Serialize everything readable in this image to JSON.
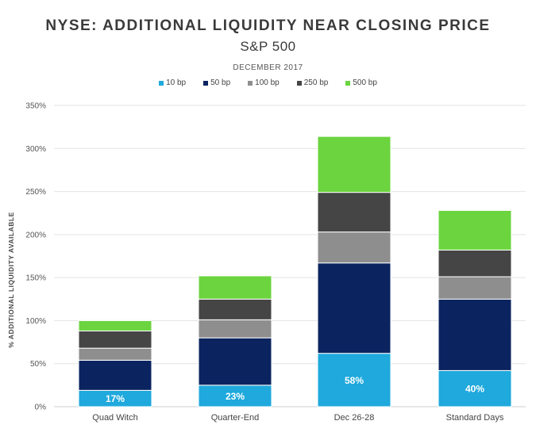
{
  "chart_data": {
    "type": "bar",
    "stacked": true,
    "title": "NYSE:  ADDITIONAL LIQUIDITY NEAR CLOSING PRICE",
    "subtitle": "S&P 500",
    "period": "DECEMBER 2017",
    "ylabel": "% ADDITIONAL LIQUIDITY AVAILABLE",
    "xlabel": "",
    "ylim": [
      0,
      350
    ],
    "yticks": [
      0,
      50,
      100,
      150,
      200,
      250,
      300,
      350
    ],
    "ytick_labels": [
      "0%",
      "50%",
      "100%",
      "150%",
      "200%",
      "250%",
      "300%",
      "350%"
    ],
    "grid": true,
    "legend_position": "top-center",
    "categories": [
      "Quad Witch",
      "Quarter-End",
      "Dec 26-28",
      "Standard Days"
    ],
    "series": [
      {
        "name": "10 bp",
        "color": "#1fa9dc",
        "values": [
          19,
          25,
          62,
          42
        ]
      },
      {
        "name": "50 bp",
        "color": "#0b2460",
        "values": [
          35,
          55,
          105,
          83
        ]
      },
      {
        "name": "100 bp",
        "color": "#8e8e8e",
        "values": [
          14,
          21,
          36,
          26
        ]
      },
      {
        "name": "250 bp",
        "color": "#454545",
        "values": [
          20,
          24,
          46,
          31
        ]
      },
      {
        "name": "500 bp",
        "color": "#6bd43f",
        "values": [
          12,
          27,
          65,
          46
        ]
      }
    ],
    "data_labels": [
      "17%",
      "23%",
      "58%",
      "40%"
    ]
  }
}
